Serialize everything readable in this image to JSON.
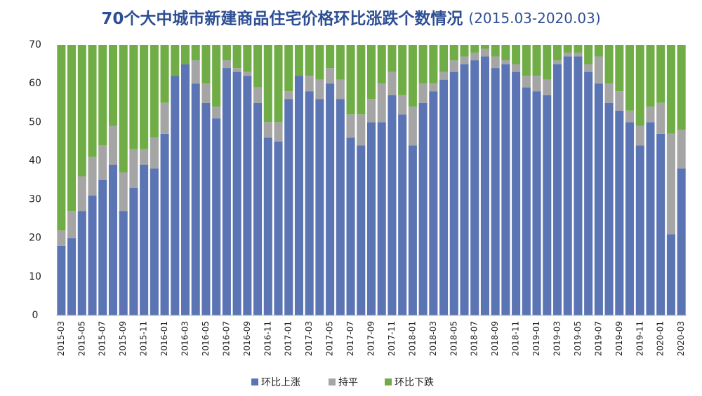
{
  "chart_data": {
    "type": "stacked_bar",
    "title": "70个大中城市新建商品住宅价格环比涨跌个数情况",
    "subtitle": "(2015.03-2020.03)",
    "categories": [
      "2015-03",
      null,
      "2015-05",
      null,
      "2015-07",
      null,
      "2015-09",
      null,
      "2015-11",
      null,
      "2016-01",
      null,
      "2016-03",
      null,
      "2016-05",
      null,
      "2016-07",
      null,
      "2016-09",
      null,
      "2016-11",
      null,
      "2017-01",
      null,
      "2017-03",
      null,
      "2017-05",
      null,
      "2017-07",
      null,
      "2017-09",
      null,
      "2017-11",
      null,
      "2018-01",
      null,
      "2018-03",
      null,
      "2018-05",
      null,
      "2018-07",
      null,
      "2018-09",
      null,
      "2018-11",
      null,
      "2019-01",
      null,
      "2019-03",
      null,
      "2019-05",
      null,
      "2019-07",
      null,
      "2019-09",
      null,
      "2019-11",
      null,
      "2020-01",
      null,
      "2020-03"
    ],
    "series": [
      {
        "name": "环比上涨",
        "color": "#5b74b3",
        "values": [
          18,
          20,
          27,
          31,
          35,
          39,
          27,
          33,
          39,
          38,
          47,
          62,
          65,
          60,
          55,
          51,
          64,
          63,
          62,
          55,
          46,
          45,
          56,
          62,
          58,
          56,
          60,
          56,
          46,
          44,
          50,
          50,
          57,
          52,
          44,
          55,
          58,
          61,
          63,
          65,
          66,
          67,
          64,
          65,
          63,
          59,
          58,
          57,
          65,
          67,
          67,
          63,
          60,
          55,
          53,
          50,
          44,
          50,
          47,
          21,
          38
        ]
      },
      {
        "name": "持平",
        "color": "#a5a5a5",
        "values": [
          4,
          7,
          9,
          10,
          9,
          10,
          10,
          10,
          4,
          8,
          8,
          0,
          0,
          6,
          5,
          3,
          2,
          1,
          1,
          4,
          4,
          5,
          2,
          0,
          4,
          5,
          4,
          5,
          6,
          8,
          6,
          10,
          6,
          5,
          10,
          5,
          2,
          2,
          3,
          2,
          2,
          2,
          3,
          1,
          2,
          3,
          4,
          4,
          1,
          1,
          1,
          2,
          7,
          5,
          5,
          3,
          5,
          4,
          8,
          26,
          10
        ]
      },
      {
        "name": "环比下跌",
        "color": "#70ad47",
        "values": [
          48,
          43,
          34,
          29,
          26,
          21,
          33,
          27,
          27,
          24,
          15,
          8,
          5,
          4,
          10,
          16,
          4,
          6,
          7,
          11,
          20,
          20,
          12,
          8,
          8,
          9,
          6,
          9,
          18,
          18,
          14,
          10,
          7,
          13,
          16,
          10,
          10,
          7,
          4,
          3,
          2,
          1,
          3,
          4,
          5,
          8,
          8,
          9,
          4,
          2,
          2,
          5,
          3,
          10,
          12,
          17,
          21,
          16,
          15,
          23,
          22
        ]
      }
    ],
    "ylim": [
      0,
      70
    ],
    "yticks": [
      0,
      10,
      20,
      30,
      40,
      50,
      60,
      70
    ],
    "grid": false,
    "legend": "bottom"
  }
}
